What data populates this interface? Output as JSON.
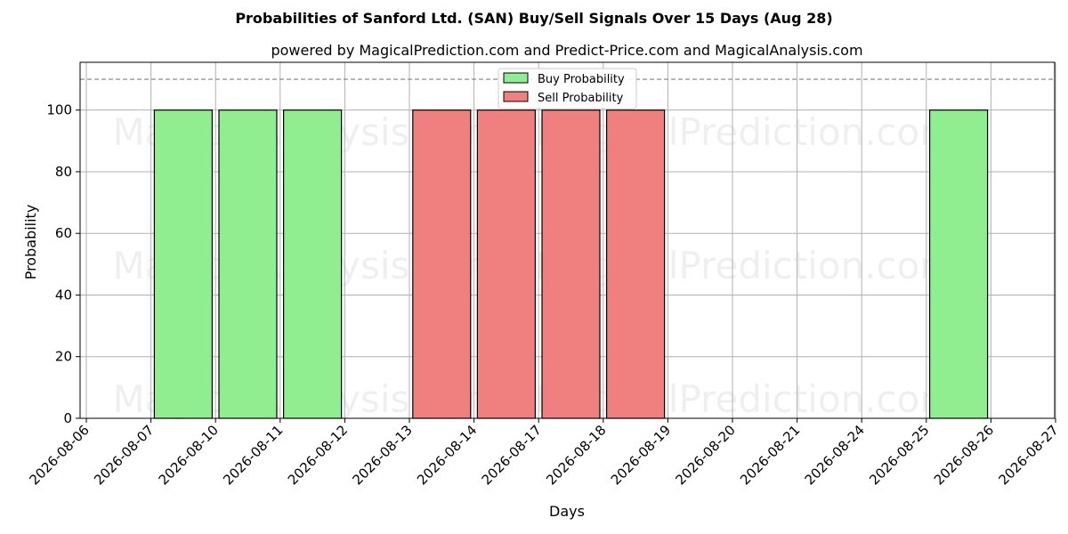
{
  "chart_data": {
    "type": "bar",
    "title": "Probabilities of Sanford Ltd. (SAN) Buy/Sell Signals Over 15 Days (Aug 28)",
    "subtitle": "powered by MagicalPrediction.com and Predict-Price.com and MagicalAnalysis.com",
    "xlabel": "Days",
    "ylabel": "Probability",
    "categories": [
      "2026-08-06",
      "2026-08-07",
      "2026-08-10",
      "2026-08-11",
      "2026-08-12",
      "2026-08-13",
      "2026-08-14",
      "2026-08-17",
      "2026-08-18",
      "2026-08-19",
      "2026-08-20",
      "2026-08-21",
      "2026-08-24",
      "2026-08-25",
      "2026-08-26",
      "2026-08-27"
    ],
    "series": [
      {
        "name": "Buy Probability",
        "color": "#90ee90",
        "values": [
          0,
          100,
          100,
          100,
          0,
          0,
          0,
          0,
          0,
          0,
          0,
          0,
          0,
          100,
          0,
          0
        ]
      },
      {
        "name": "Sell Probability",
        "color": "#f08080",
        "values": [
          0,
          0,
          0,
          0,
          0,
          100,
          100,
          100,
          100,
          0,
          0,
          0,
          0,
          0,
          0,
          0
        ]
      }
    ],
    "ylim": [
      0,
      115.5
    ],
    "yticks": [
      0,
      20,
      40,
      60,
      80,
      100
    ],
    "reference_line": {
      "y": 110,
      "style": "dashed",
      "color": "#808080"
    },
    "grid": true,
    "legend": "top-center",
    "watermarks": [
      "MagicalAnalysis.com",
      "MagicalPrediction.com"
    ]
  }
}
